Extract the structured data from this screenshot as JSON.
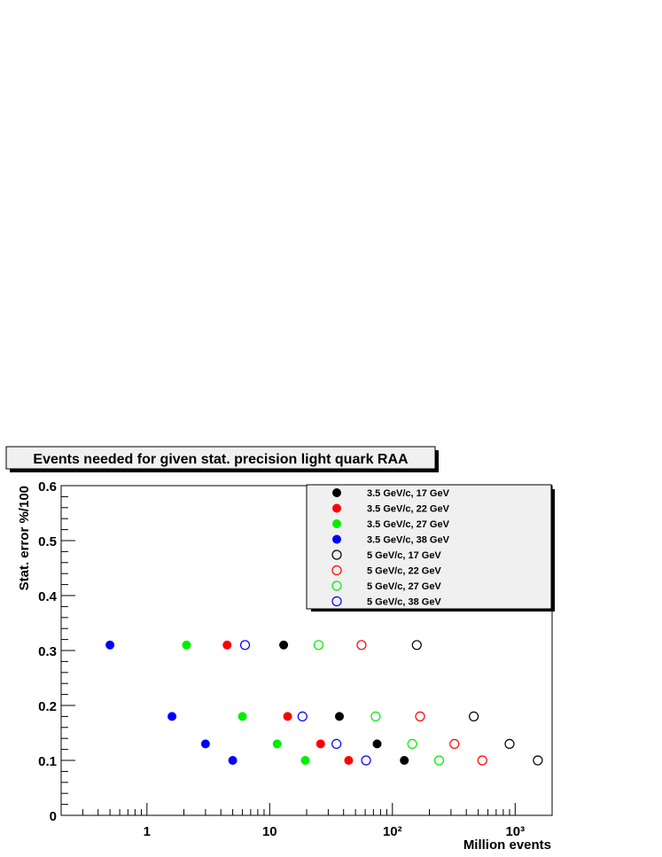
{
  "chart_data": {
    "type": "scatter",
    "title": "Events needed for given stat. precision light quark RAA",
    "xlabel": "Million events",
    "ylabel": "Stat. error %/100",
    "xscale": "log",
    "xlim": [
      0.2,
      2000
    ],
    "ylim": [
      0,
      0.6
    ],
    "xticks": [
      "1",
      "10",
      "10²",
      "10³"
    ],
    "yticks": [
      "0",
      "0.1",
      "0.2",
      "0.3",
      "0.4",
      "0.5",
      "0.6"
    ],
    "grid": false,
    "legend_position": "top-right",
    "series": [
      {
        "name": "3.5 GeV/c, 17 GeV",
        "color": "#000000",
        "filled": true,
        "points": [
          [
            13,
            0.31
          ],
          [
            37,
            0.18
          ],
          [
            75,
            0.13
          ],
          [
            125,
            0.1
          ]
        ]
      },
      {
        "name": "3.5 GeV/c, 22 GeV",
        "color": "#ff0000",
        "filled": true,
        "points": [
          [
            4.5,
            0.31
          ],
          [
            14,
            0.18
          ],
          [
            26,
            0.13
          ],
          [
            44,
            0.1
          ]
        ]
      },
      {
        "name": "3.5 GeV/c, 27 GeV",
        "color": "#00ee00",
        "filled": true,
        "points": [
          [
            2.1,
            0.31
          ],
          [
            6,
            0.18
          ],
          [
            11.5,
            0.13
          ],
          [
            19.5,
            0.1
          ]
        ]
      },
      {
        "name": "3.5 GeV/c, 38 GeV",
        "color": "#0000ff",
        "filled": true,
        "points": [
          [
            0.5,
            0.31
          ],
          [
            1.6,
            0.18
          ],
          [
            3,
            0.13
          ],
          [
            5,
            0.1
          ]
        ]
      },
      {
        "name": "5 GeV/c, 17 GeV",
        "color": "#000000",
        "filled": false,
        "points": [
          [
            158,
            0.31
          ],
          [
            460,
            0.18
          ],
          [
            900,
            0.13
          ],
          [
            1530,
            0.1
          ]
        ]
      },
      {
        "name": "5 GeV/c, 22 GeV",
        "color": "#ff0000",
        "filled": false,
        "points": [
          [
            56,
            0.31
          ],
          [
            168,
            0.18
          ],
          [
            320,
            0.13
          ],
          [
            540,
            0.1
          ]
        ]
      },
      {
        "name": "5 GeV/c, 27 GeV",
        "color": "#00ee00",
        "filled": false,
        "points": [
          [
            25,
            0.31
          ],
          [
            73,
            0.18
          ],
          [
            145,
            0.13
          ],
          [
            240,
            0.1
          ]
        ]
      },
      {
        "name": "5 GeV/c, 38 GeV",
        "color": "#0000ff",
        "filled": false,
        "points": [
          [
            6.3,
            0.31
          ],
          [
            18.5,
            0.18
          ],
          [
            35,
            0.13
          ],
          [
            61,
            0.1
          ]
        ]
      }
    ]
  }
}
